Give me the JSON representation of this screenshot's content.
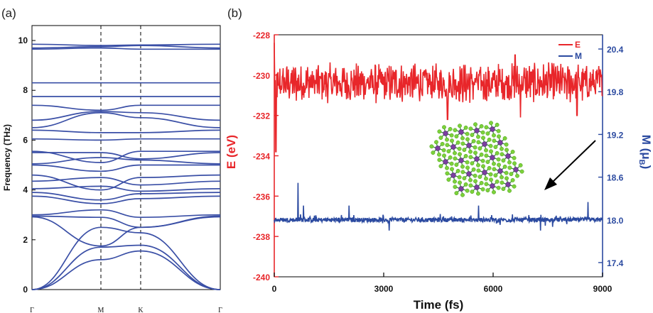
{
  "chart_data": [
    {
      "panel_label": "(a)",
      "type": "line",
      "ylabel": "Frequency (THz)",
      "ylim": [
        0,
        10.6
      ],
      "y_ticks": [
        0,
        2,
        4,
        6,
        8,
        10
      ],
      "x_ticks": [
        "Γ",
        "M",
        "K",
        "Γ"
      ],
      "x_tick_positions": [
        0,
        1,
        1.577,
        2.732
      ],
      "vertical_dashed_lines_at": [
        "M",
        "K"
      ],
      "line_color": "#3a4fa6",
      "series": [
        {
          "x": [
            0,
            1,
            1.577,
            2.732
          ],
          "values": [
            0,
            1.2,
            1.55,
            0
          ]
        },
        {
          "x": [
            0,
            1,
            1.577,
            2.732
          ],
          "values": [
            0,
            1.7,
            1.78,
            0
          ]
        },
        {
          "x": [
            0,
            1,
            1.577,
            2.732
          ],
          "values": [
            0,
            2.5,
            2.28,
            0
          ]
        },
        {
          "x": [
            0,
            1,
            1.577,
            2.732
          ],
          "values": [
            2.92,
            1.75,
            2.5,
            2.92
          ]
        },
        {
          "x": [
            0,
            1,
            1.577,
            2.732
          ],
          "values": [
            2.95,
            2.9,
            2.5,
            2.95
          ]
        },
        {
          "x": [
            0,
            1,
            1.577,
            2.732
          ],
          "values": [
            3.0,
            3.2,
            2.9,
            3.0
          ]
        },
        {
          "x": [
            0,
            1,
            1.577,
            2.732
          ],
          "values": [
            3.75,
            3.45,
            3.65,
            3.75
          ]
        },
        {
          "x": [
            0,
            1,
            1.577,
            2.732
          ],
          "values": [
            3.9,
            3.6,
            3.85,
            3.9
          ]
        },
        {
          "x": [
            0,
            1,
            1.577,
            2.732
          ],
          "values": [
            4.05,
            4.15,
            3.95,
            4.05
          ]
        },
        {
          "x": [
            0,
            1,
            1.577,
            2.732
          ],
          "values": [
            4.35,
            4.5,
            4.2,
            4.35
          ]
        },
        {
          "x": [
            0,
            1,
            1.577,
            2.732
          ],
          "values": [
            4.6,
            4.0,
            4.5,
            4.6
          ]
        },
        {
          "x": [
            0,
            1,
            1.577,
            2.732
          ],
          "values": [
            5.0,
            4.75,
            5.0,
            5.0
          ]
        },
        {
          "x": [
            0,
            1,
            1.577,
            2.732
          ],
          "values": [
            5.05,
            5.3,
            5.2,
            5.05
          ]
        },
        {
          "x": [
            0,
            1,
            1.577,
            2.732
          ],
          "values": [
            5.5,
            5.5,
            5.25,
            5.5
          ]
        },
        {
          "x": [
            0,
            1,
            1.577,
            2.732
          ],
          "values": [
            5.55,
            5.1,
            5.55,
            5.55
          ]
        },
        {
          "x": [
            0,
            1,
            1.577,
            2.732
          ],
          "values": [
            6.05,
            6.0,
            6.05,
            6.05
          ]
        },
        {
          "x": [
            0,
            1,
            1.577,
            2.732
          ],
          "values": [
            6.4,
            6.3,
            6.3,
            6.4
          ]
        },
        {
          "x": [
            0,
            1,
            1.577,
            2.732
          ],
          "values": [
            6.5,
            7.1,
            6.9,
            6.5
          ]
        },
        {
          "x": [
            0,
            1,
            1.577,
            2.732
          ],
          "values": [
            6.8,
            7.15,
            7.1,
            6.8
          ]
        },
        {
          "x": [
            0,
            1,
            1.577,
            2.732
          ],
          "values": [
            7.4,
            7.2,
            7.4,
            7.4
          ]
        },
        {
          "x": [
            0,
            1,
            1.577,
            2.732
          ],
          "values": [
            7.75,
            7.75,
            7.75,
            7.75
          ]
        },
        {
          "x": [
            0,
            1,
            1.577,
            2.732
          ],
          "values": [
            8.3,
            8.3,
            8.3,
            8.3
          ]
        },
        {
          "x": [
            0,
            1,
            1.577,
            2.732
          ],
          "values": [
            9.65,
            9.7,
            9.65,
            9.65
          ]
        },
        {
          "x": [
            0,
            1,
            1.577,
            2.732
          ],
          "values": [
            9.7,
            9.75,
            9.8,
            9.7
          ]
        },
        {
          "x": [
            0,
            1,
            1.577,
            2.732
          ],
          "values": [
            9.85,
            9.8,
            9.82,
            9.85
          ]
        }
      ]
    },
    {
      "panel_label": "(b)",
      "type": "line",
      "xlabel": "Time (fs)",
      "xlim": [
        0,
        9000
      ],
      "x_ticks": [
        0,
        3000,
        6000,
        9000
      ],
      "ylabel": "E (eV)",
      "ylim": [
        -240,
        -228
      ],
      "y_ticks": [
        -240,
        -238,
        -236,
        -234,
        -232,
        -230,
        -228
      ],
      "ylabel_right": "M (μB)",
      "ylabel_right_parts": {
        "main": "M (",
        "sym": "μ",
        "sub": "B",
        "close": ")"
      },
      "ylim_right": [
        17.2,
        20.6
      ],
      "y_ticks_right": [
        17.4,
        18.0,
        18.6,
        19.2,
        19.8,
        20.4
      ],
      "y_tick_labels_right": [
        "17.4",
        "18.0",
        "18.6",
        "19.2",
        "19.8",
        "20.4"
      ],
      "legend_placement": "top-right",
      "colors": {
        "E": "#e8262a",
        "M": "#2b4aa0",
        "atom_center": "#7a3fa0",
        "atom_ligand": "#7cd13a",
        "bond": "#2d8a2d"
      },
      "series": [
        {
          "name": "E",
          "axis": "left",
          "mean": -230.4,
          "fluctuation": 0.8,
          "notable_points": [
            [
              0,
              -228.4
            ],
            [
              50,
              -233.8
            ],
            [
              120,
              -230.5
            ],
            [
              4750,
              -232.2
            ],
            [
              6750,
              -232.1
            ],
            [
              6600,
              -229.0
            ],
            [
              8300,
              -232.0
            ]
          ]
        },
        {
          "name": "M",
          "axis": "right",
          "mean": 18.0,
          "fluctuation": 0.03,
          "notable_points": [
            [
              650,
              18.52
            ],
            [
              800,
              18.2
            ],
            [
              2050,
              18.2
            ],
            [
              3150,
              17.85
            ],
            [
              5600,
              18.2
            ],
            [
              7300,
              17.85
            ],
            [
              8600,
              18.25
            ]
          ]
        }
      ],
      "inset": "molecular structure with arrow pointing to M curve"
    }
  ]
}
